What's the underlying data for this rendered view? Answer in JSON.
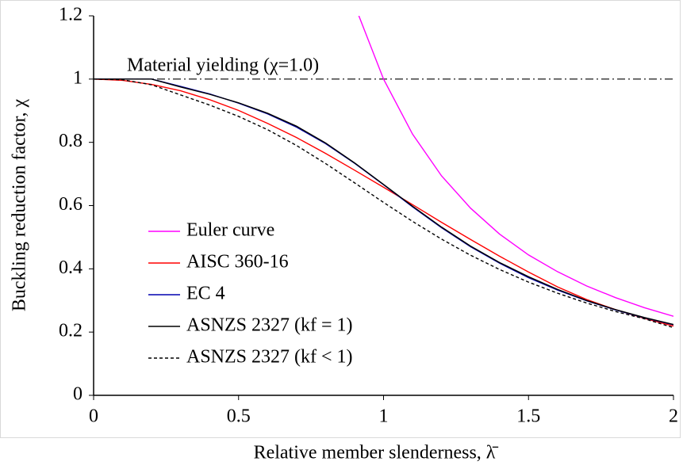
{
  "chart_data": {
    "type": "line",
    "x_label": "Relative member slenderness, λ̄",
    "y_label": "Buckling reduction factor, χ",
    "x": [
      0,
      0.1,
      0.2,
      0.3,
      0.4,
      0.5,
      0.6,
      0.7,
      0.8,
      0.9,
      1.0,
      1.1,
      1.2,
      1.3,
      1.4,
      1.5,
      1.6,
      1.7,
      1.8,
      1.9,
      2.0
    ],
    "series": [
      {
        "name": "Euler curve",
        "color": "#ff00ff",
        "dash": "none",
        "values": [
          null,
          null,
          null,
          null,
          null,
          null,
          null,
          null,
          null,
          1.235,
          1.0,
          0.826,
          0.694,
          0.592,
          0.51,
          0.444,
          0.391,
          0.346,
          0.309,
          0.277,
          0.25
        ]
      },
      {
        "name": "AISC 360-16",
        "color": "#ff0000",
        "dash": "none",
        "values": [
          1,
          0.996,
          0.983,
          0.963,
          0.935,
          0.901,
          0.86,
          0.815,
          0.765,
          0.712,
          0.658,
          0.603,
          0.547,
          0.493,
          0.44,
          0.39,
          0.343,
          0.303,
          0.271,
          0.243,
          0.219
        ]
      },
      {
        "name": "EC 4",
        "color": "#0000b0",
        "dash": "none",
        "values": [
          1,
          1,
          1,
          0.977,
          0.953,
          0.924,
          0.89,
          0.848,
          0.796,
          0.734,
          0.666,
          0.596,
          0.53,
          0.47,
          0.418,
          0.372,
          0.333,
          0.299,
          0.27,
          0.245,
          0.223
        ]
      },
      {
        "name": "ASNZS 2327 (kf = 1)",
        "color": "#000000",
        "dash": "none",
        "values": [
          1,
          1,
          1,
          0.975,
          0.952,
          0.925,
          0.892,
          0.851,
          0.798,
          0.735,
          0.667,
          0.598,
          0.532,
          0.472,
          0.42,
          0.375,
          0.335,
          0.3,
          0.271,
          0.246,
          0.224
        ]
      },
      {
        "name": "ASNZS 2327 (kf < 1)",
        "color": "#000000",
        "dash": "4 3",
        "values": [
          1,
          0.998,
          0.982,
          0.95,
          0.918,
          0.882,
          0.84,
          0.79,
          0.733,
          0.672,
          0.61,
          0.55,
          0.494,
          0.443,
          0.398,
          0.358,
          0.323,
          0.292,
          0.265,
          0.242,
          0.214
        ]
      }
    ],
    "reference_line": {
      "value": 1,
      "label": "Material yielding (χ=1.0)"
    },
    "xlim": [
      0,
      2
    ],
    "xticks": [
      0,
      0.5,
      1,
      1.5,
      2
    ],
    "ylim": [
      0,
      1.2
    ],
    "yticks": [
      0,
      0.2,
      0.4,
      0.6,
      0.8,
      1,
      1.2
    ],
    "grid": false,
    "legend": "left"
  }
}
